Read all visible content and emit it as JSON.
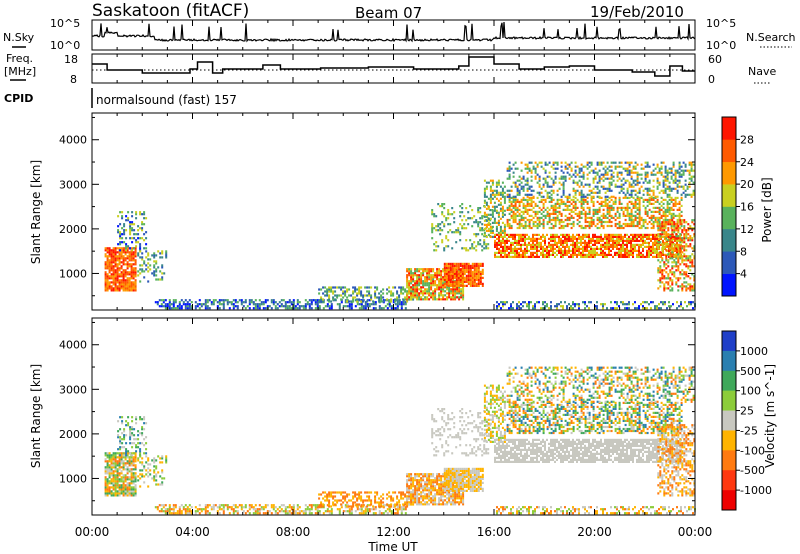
{
  "header": {
    "station": "Saskatoon (fitACF)",
    "beam": "Beam 07",
    "date": "19/Feb/2010"
  },
  "noise_panel": {
    "left_label": "N.Sky",
    "right_label": "N.Search",
    "tick_top": "10^5",
    "tick_bottom": "10^0"
  },
  "freq_panel": {
    "left_label_line1": "Freq.",
    "left_label_line2": "[MHz]",
    "right_label": "Nave",
    "left_ticks": [
      "18",
      "8"
    ],
    "right_ticks": [
      "60",
      "0"
    ]
  },
  "cpid": {
    "label": "CPID",
    "value": "normalsound (fast) 157"
  },
  "chart_data": [
    {
      "type": "heatmap",
      "name": "power",
      "ylabel": "Slant Range [km]",
      "ylim": [
        180,
        4600
      ],
      "yticks": [
        "1000",
        "2000",
        "3000",
        "4000"
      ],
      "xlim": [
        "00:00",
        "24:00"
      ],
      "colorbar_label": "Power [dB]",
      "colorbar_ticks": [
        "4",
        "8",
        "12",
        "16",
        "20",
        "24",
        "28"
      ],
      "colorbar_colors": [
        "#0014ff",
        "#2c58b8",
        "#39868a",
        "#59b25c",
        "#c9d020",
        "#ff9900",
        "#ff5a00",
        "#ff1600"
      ]
    },
    {
      "type": "heatmap",
      "name": "velocity",
      "ylabel": "Slant Range [km]",
      "ylim": [
        180,
        4600
      ],
      "yticks": [
        "1000",
        "2000",
        "3000",
        "4000"
      ],
      "xlim": [
        "00:00",
        "24:00"
      ],
      "xticks": [
        "00:00",
        "04:00",
        "08:00",
        "12:00",
        "16:00",
        "20:00",
        "00:00"
      ],
      "xlabel": "Time UT",
      "colorbar_label": "Velocity [m s^-1]",
      "colorbar_ticks": [
        "1000",
        "500",
        "100",
        "25",
        "-25",
        "-100",
        "-500",
        "-1000"
      ],
      "colorbar_colors": [
        "#1f3fc8",
        "#2a7fb0",
        "#3fa85a",
        "#8ccc3a",
        "#c8c8c0",
        "#ffb400",
        "#ff7a10",
        "#ff3810",
        "#ee0000"
      ]
    }
  ]
}
